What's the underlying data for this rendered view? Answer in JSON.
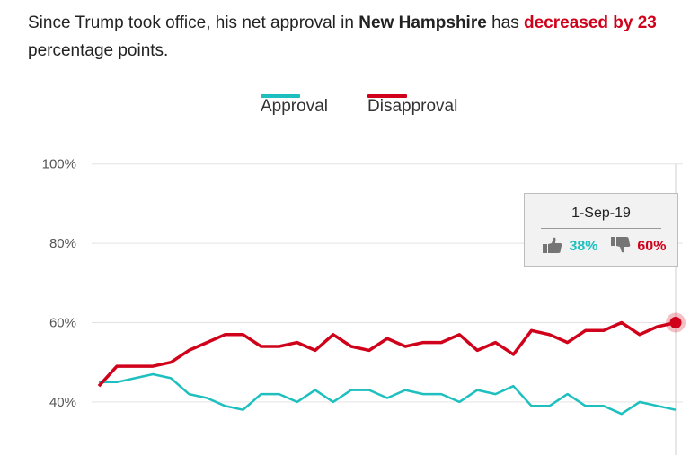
{
  "headline": {
    "prefix": "Since Trump took office, his net approval in ",
    "state": "New Hampshire",
    "middle": " has ",
    "change": "decreased by 23",
    "suffix": " percentage points."
  },
  "colors": {
    "approval": "#1dbfbf",
    "disapproval": "#d0021b",
    "grid": "#e3e3e3"
  },
  "tooltip": {
    "date": "1-Sep-19",
    "approve_icon": "thumbs-up-icon",
    "approve_value": "38%",
    "disapprove_icon": "thumbs-down-icon",
    "disapprove_value": "60%"
  },
  "chart_data": {
    "type": "line",
    "ylim": [
      30,
      100
    ],
    "yticks": [
      {
        "value": 100,
        "label": "100%"
      },
      {
        "value": 80,
        "label": "80%"
      },
      {
        "value": 60,
        "label": "60%"
      },
      {
        "value": 40,
        "label": "40%"
      }
    ],
    "legend_position": "top-center",
    "grid": true,
    "series": [
      {
        "name": "Approval",
        "color": "#1dbfbf",
        "values": [
          45,
          45,
          46,
          47,
          46,
          42,
          41,
          39,
          38,
          42,
          42,
          40,
          43,
          40,
          43,
          43,
          41,
          43,
          42,
          42,
          40,
          43,
          42,
          44,
          39,
          39,
          42,
          39,
          39,
          37,
          40,
          39,
          38
        ]
      },
      {
        "name": "Disapproval",
        "color": "#d0021b",
        "values": [
          44,
          49,
          49,
          49,
          50,
          53,
          55,
          57,
          57,
          54,
          54,
          55,
          53,
          57,
          54,
          53,
          56,
          54,
          55,
          55,
          57,
          53,
          55,
          52,
          58,
          57,
          55,
          58,
          58,
          60,
          57,
          59,
          60
        ]
      }
    ],
    "highlight": {
      "index": 32,
      "series": "Disapproval",
      "value": 60
    }
  }
}
